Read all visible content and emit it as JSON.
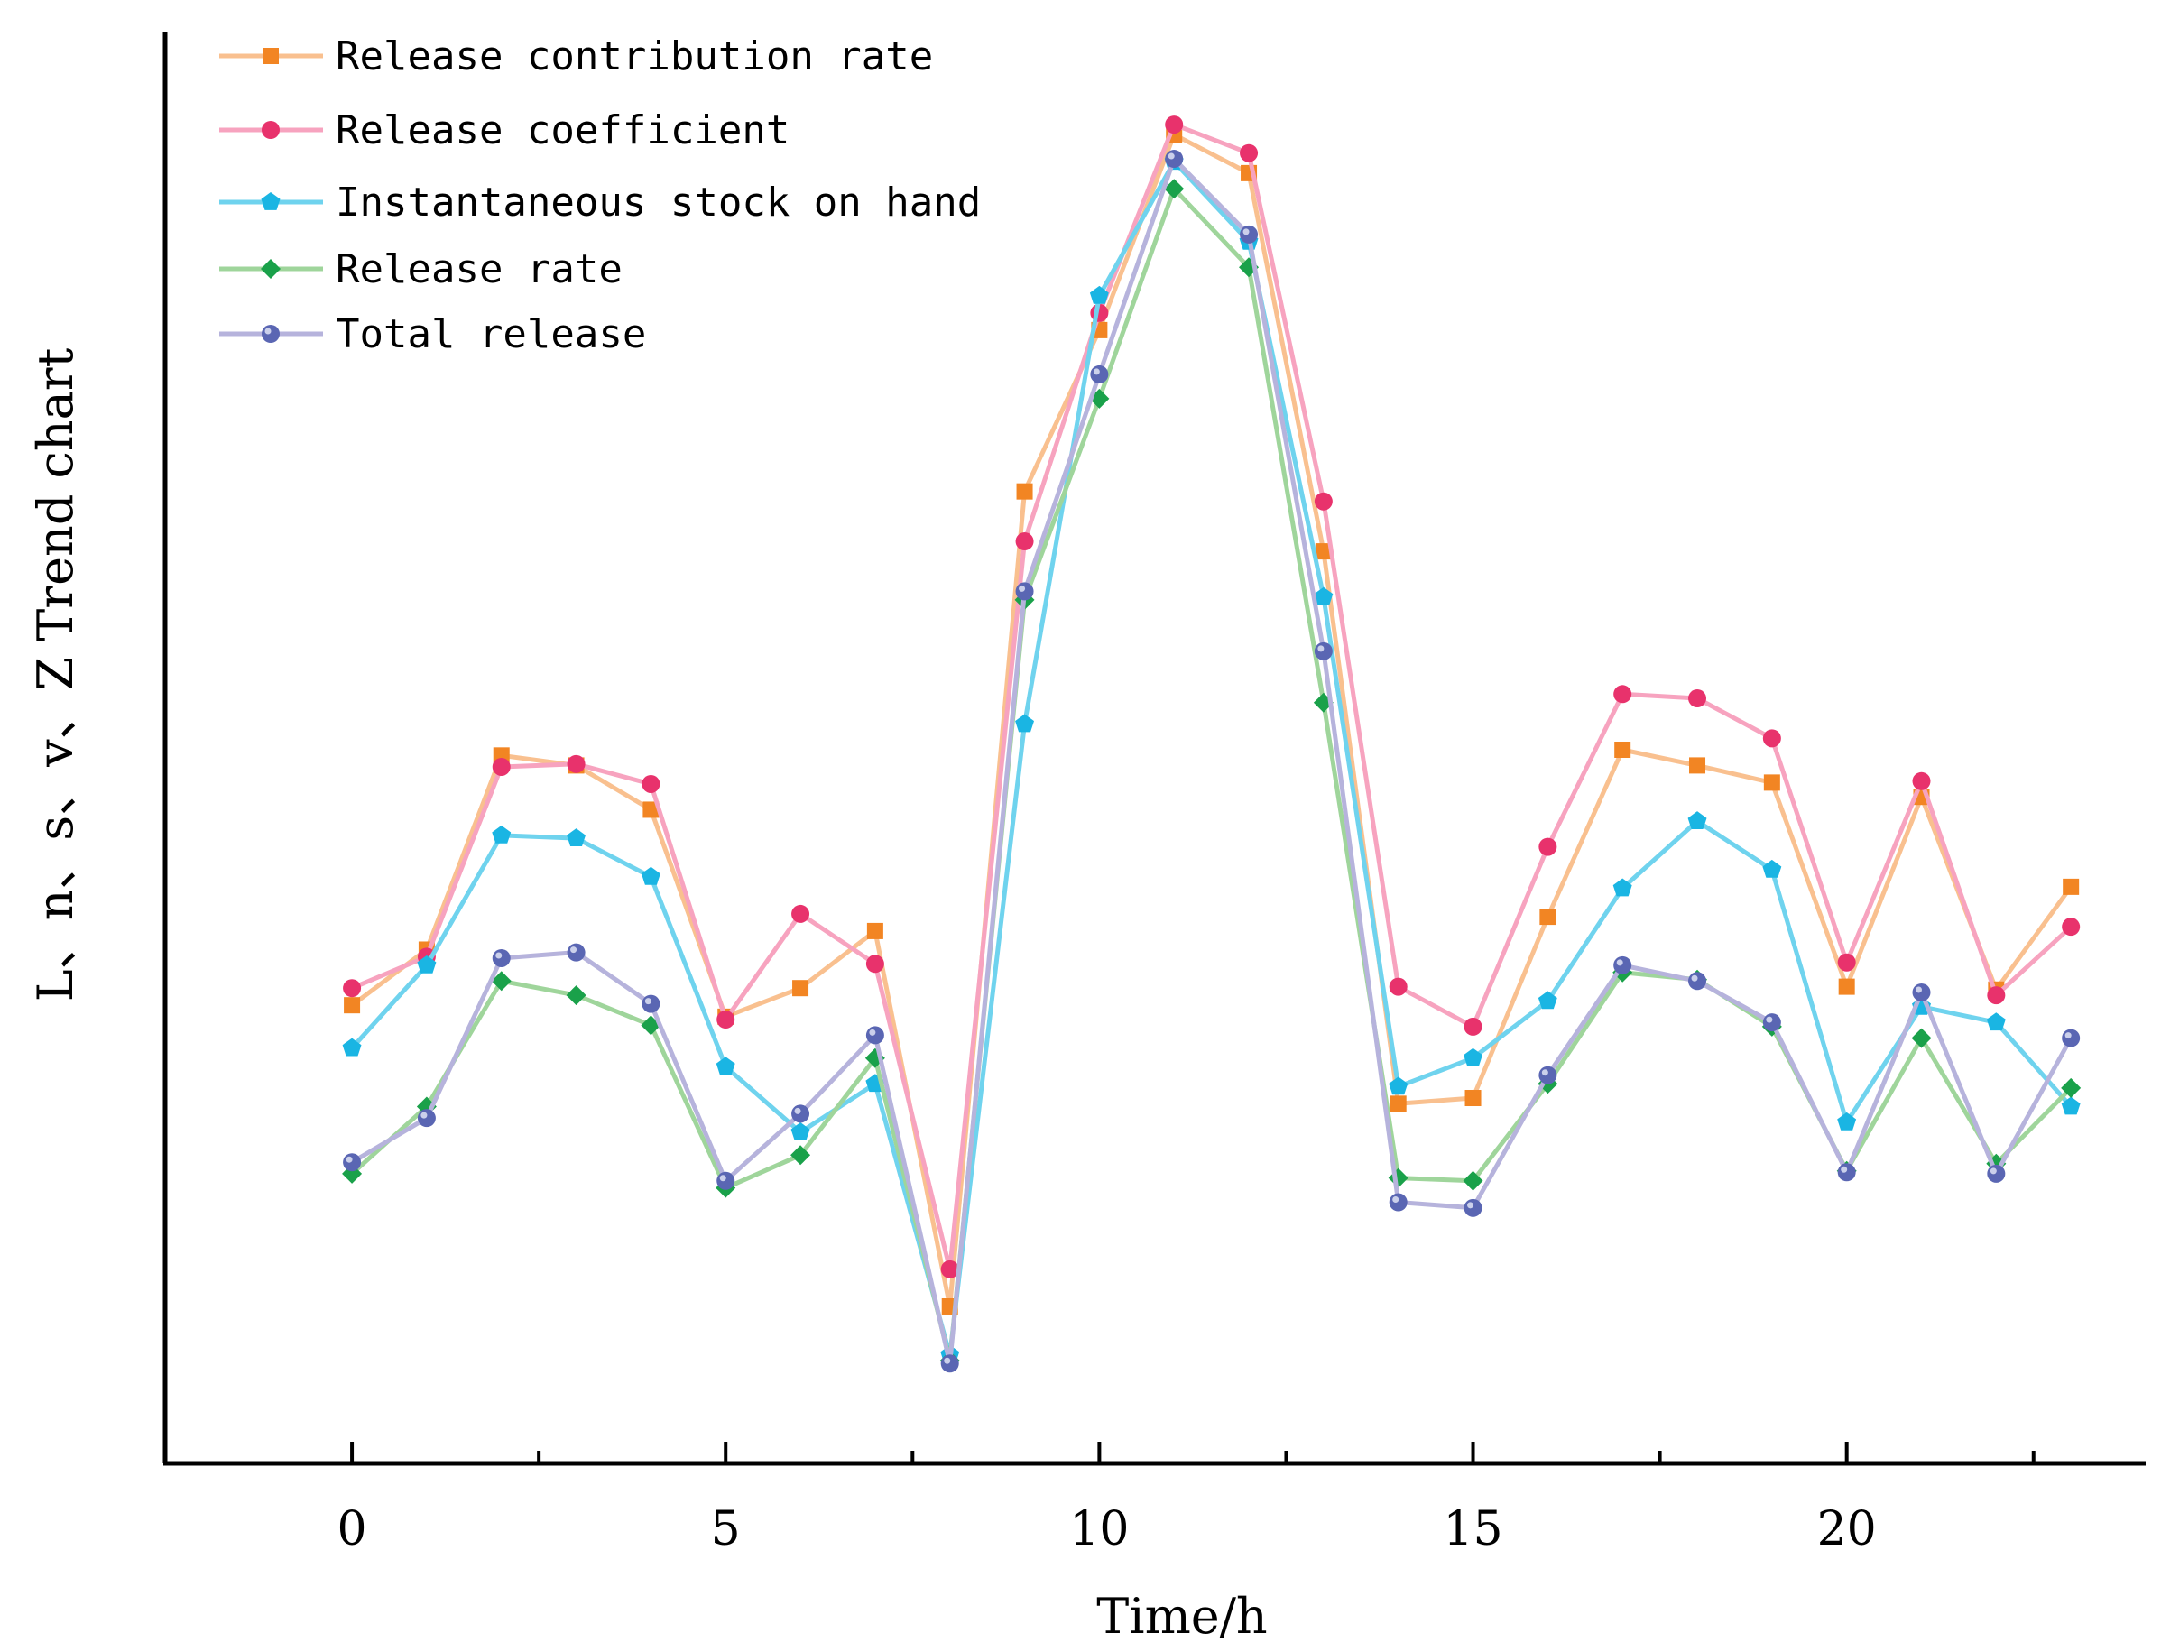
{
  "chart_data": {
    "type": "line",
    "xlabel": "Time/h",
    "ylabel": "L、n、s、v、Z Trend chart",
    "xlim": [
      -2.5,
      24
    ],
    "ylim": [
      0,
      100
    ],
    "x_ticks": [
      0,
      5,
      10,
      15,
      20
    ],
    "x_minor_ticks": [
      2.5,
      7.5,
      12.5,
      17.5,
      22.5
    ],
    "y_ticks_shown": false,
    "grid": false,
    "legend_position": "top-left",
    "x": [
      0,
      1,
      2,
      3,
      4,
      5,
      6,
      7,
      8,
      9,
      10,
      11,
      12,
      13,
      14,
      15,
      16,
      17,
      18,
      19,
      20,
      21,
      22,
      23
    ],
    "series": [
      {
        "name": "Release contribution rate",
        "line_color": "#f9c08f",
        "marker_color": "#f28523",
        "marker": "square",
        "values": [
          32.1,
          36.0,
          49.6,
          48.9,
          45.8,
          31.3,
          33.3,
          37.3,
          11.0,
          68.1,
          79.4,
          93.1,
          90.4,
          63.9,
          25.2,
          25.6,
          38.3,
          50.0,
          48.9,
          47.7,
          33.4,
          46.7,
          33.2,
          40.4
        ]
      },
      {
        "name": "Release coefficient",
        "line_color": "#f7a3bf",
        "marker_color": "#e8326c",
        "marker": "circle",
        "values": [
          33.3,
          35.5,
          48.8,
          49.0,
          47.6,
          31.1,
          38.5,
          35.0,
          13.6,
          64.6,
          80.6,
          93.8,
          91.8,
          67.4,
          33.4,
          30.6,
          43.2,
          53.9,
          53.6,
          50.8,
          35.1,
          47.8,
          32.8,
          37.6
        ]
      },
      {
        "name": "Instantaneous stock on hand",
        "line_color": "#6fd3ee",
        "marker_color": "#1ab5e3",
        "marker": "pentagon",
        "values": [
          29.1,
          34.9,
          44.0,
          43.8,
          41.1,
          27.8,
          23.2,
          26.6,
          7.6,
          51.8,
          81.8,
          91.2,
          85.6,
          60.7,
          26.4,
          28.4,
          32.4,
          40.3,
          45.0,
          41.6,
          23.9,
          32.0,
          30.9,
          25.0
        ]
      },
      {
        "name": "Release rate",
        "line_color": "#9fd59b",
        "marker_color": "#1aa14a",
        "marker": "diamond",
        "values": [
          20.3,
          25.0,
          33.8,
          32.8,
          30.7,
          19.3,
          21.6,
          28.4,
          7.2,
          60.5,
          74.6,
          89.3,
          83.8,
          53.3,
          20.0,
          19.8,
          26.6,
          34.4,
          33.9,
          30.6,
          20.5,
          29.8,
          21.0,
          26.3
        ]
      },
      {
        "name": "Total release",
        "line_color": "#b6b3dc",
        "marker_color": "#5a66b3",
        "marker": "sphere",
        "values": [
          21.1,
          24.2,
          35.4,
          35.8,
          32.2,
          19.8,
          24.5,
          30.0,
          7.0,
          61.1,
          76.3,
          91.4,
          86.1,
          56.9,
          18.3,
          17.9,
          27.2,
          34.9,
          33.8,
          30.9,
          20.4,
          33.0,
          20.3,
          29.8
        ]
      }
    ]
  }
}
